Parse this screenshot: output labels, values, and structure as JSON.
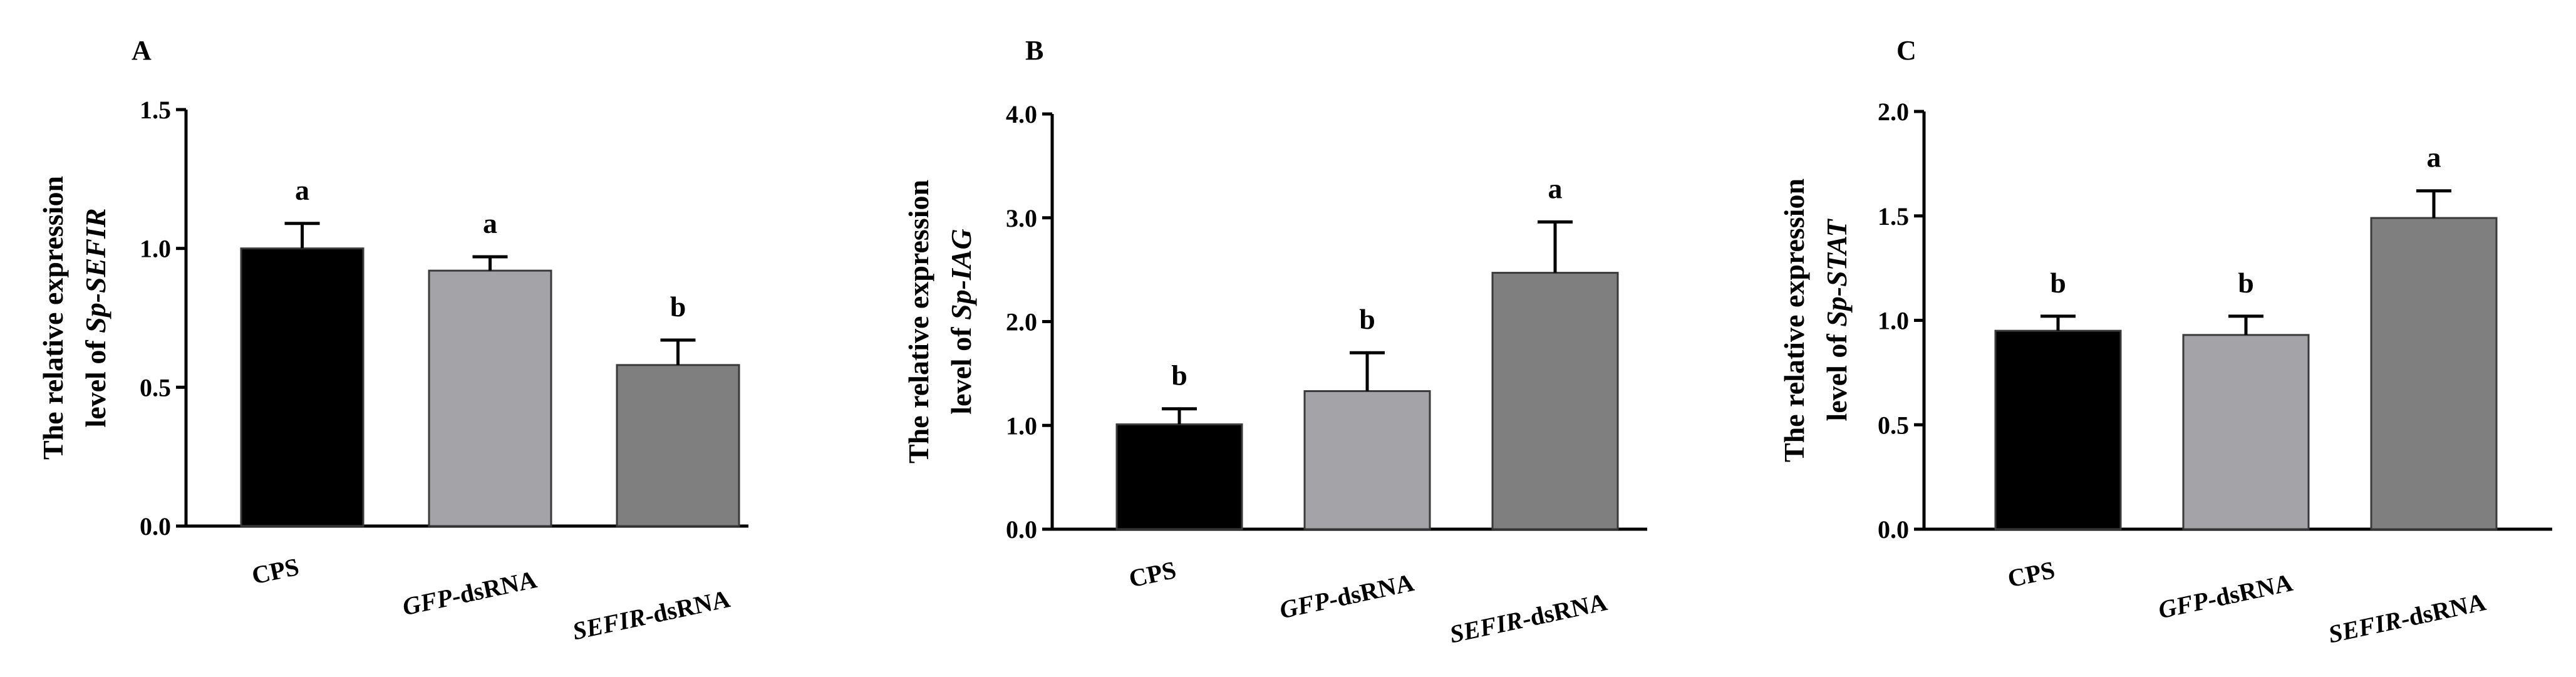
{
  "chart_data": [
    {
      "type": "bar",
      "panel": "A",
      "ylabel": [
        "The relative expression",
        "level of ",
        "Sp-SEFIR"
      ],
      "ylim": [
        0,
        1.5
      ],
      "yticks": [
        "0.0",
        "0.5",
        "1.0",
        "1.5"
      ],
      "categories": [
        {
          "italic": "",
          "plain": "CPS"
        },
        {
          "italic": "GFP",
          "plain": "-dsRNA"
        },
        {
          "italic": "SEFIR",
          "plain": "-dsRNA"
        }
      ],
      "values": [
        1.0,
        0.92,
        0.58
      ],
      "errors": [
        0.09,
        0.05,
        0.09
      ],
      "significance": [
        "a",
        "a",
        "b"
      ],
      "colors": [
        "#000000",
        "#a3a3a8",
        "#7f7f7f"
      ]
    },
    {
      "type": "bar",
      "panel": "B",
      "ylabel": [
        "The relative expression",
        "level of ",
        "Sp-IAG"
      ],
      "ylim": [
        0,
        4.0
      ],
      "yticks": [
        "0.0",
        "1.0",
        "2.0",
        "3.0",
        "4.0"
      ],
      "categories": [
        {
          "italic": "",
          "plain": "CPS"
        },
        {
          "italic": "GFP",
          "plain": "-dsRNA"
        },
        {
          "italic": "SEFIR",
          "plain": "-dsRNA"
        }
      ],
      "values": [
        1.01,
        1.33,
        2.47
      ],
      "errors": [
        0.15,
        0.37,
        0.49
      ],
      "significance": [
        "b",
        "b",
        "a"
      ],
      "colors": [
        "#000000",
        "#a3a3a8",
        "#7f7f7f"
      ]
    },
    {
      "type": "bar",
      "panel": "C",
      "ylabel": [
        "The relative expression",
        "level of ",
        "Sp-STAT"
      ],
      "ylim": [
        0,
        2.0
      ],
      "yticks": [
        "0.0",
        "0.5",
        "1.0",
        "1.5",
        "2.0"
      ],
      "categories": [
        {
          "italic": "",
          "plain": "CPS"
        },
        {
          "italic": "GFP",
          "plain": "-dsRNA"
        },
        {
          "italic": "SEFIR",
          "plain": "-dsRNA"
        }
      ],
      "values": [
        0.95,
        0.93,
        1.49
      ],
      "errors": [
        0.07,
        0.09,
        0.13
      ],
      "significance": [
        "b",
        "b",
        "a"
      ],
      "colors": [
        "#000000",
        "#a3a3a8",
        "#7f7f7f"
      ]
    }
  ]
}
